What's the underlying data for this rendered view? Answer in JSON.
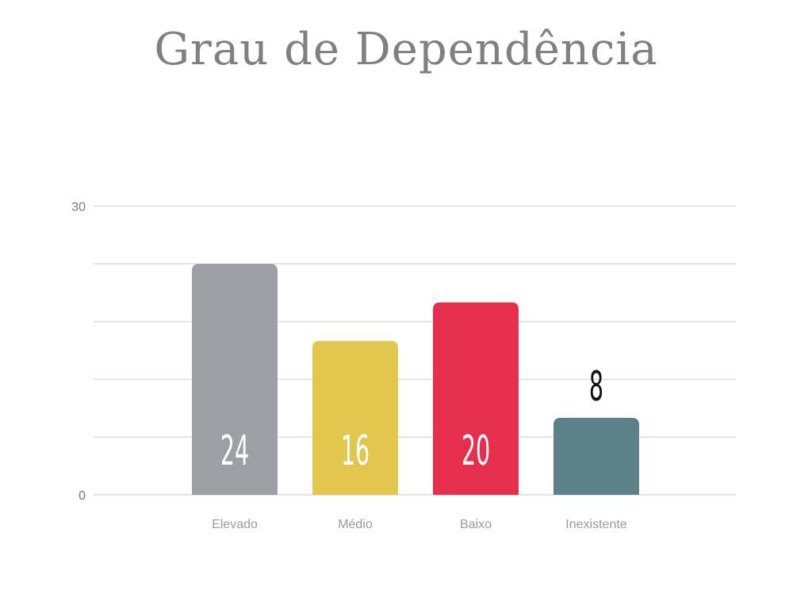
{
  "title": "Grau de Dependência",
  "chart_data": {
    "type": "bar",
    "title": "Grau de Dependência",
    "categories": [
      "Elevado",
      "Médio",
      "Baixo",
      "Inexistente"
    ],
    "values": [
      24,
      16,
      20,
      8
    ],
    "value_labels": [
      "24",
      "16",
      "20",
      "8"
    ],
    "colors": [
      "#9ca0a4",
      "#e3c64d",
      "#e62f4c",
      "#5c8288"
    ],
    "value_label_colors": [
      "#ffffff",
      "#ffffff",
      "#ffffff",
      "#111111"
    ],
    "ylim": [
      0,
      30
    ],
    "y_tick_labels": [
      "0",
      "30"
    ],
    "gridlines": [
      0,
      6,
      12,
      18,
      24,
      30
    ],
    "grid": true,
    "xlabel": "",
    "ylabel": ""
  }
}
